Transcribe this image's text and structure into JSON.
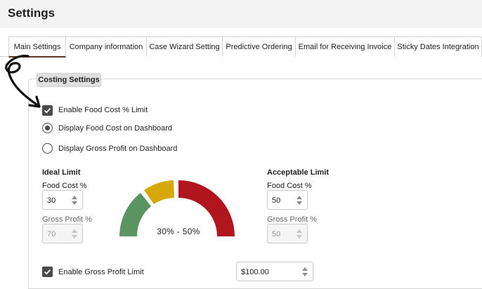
{
  "page": {
    "title": "Settings"
  },
  "tabs": [
    {
      "label": "Main Settings",
      "active": true
    },
    {
      "label": "Company information",
      "active": false
    },
    {
      "label": "Case Wizard Setting",
      "active": false
    },
    {
      "label": "Predictive Ordering",
      "active": false
    },
    {
      "label": "Email for Receiving Invoice",
      "active": false
    },
    {
      "label": "Sticky Dates Integration",
      "active": false
    }
  ],
  "costing": {
    "section_title": "Costing Settings",
    "enable_food_cost_limit": {
      "label": "Enable Food Cost % Limit",
      "checked": true
    },
    "display_food_cost": {
      "label": "Display Food Cost on Dashboard",
      "selected": true
    },
    "display_gross_profit": {
      "label": "Display Gross Profit on Dashboard",
      "selected": false
    },
    "ideal_limit": {
      "heading": "Ideal Limit",
      "food_cost_label": "Food Cost %",
      "food_cost_value": "30",
      "gross_profit_label": "Gross Profit %",
      "gross_profit_value": "70"
    },
    "acceptable_limit": {
      "heading": "Acceptable Limit",
      "food_cost_label": "Food Cost %",
      "food_cost_value": "50",
      "gross_profit_label": "Gross Profit %",
      "gross_profit_value": "50"
    },
    "gauge": {
      "range_label": "30% - 50%",
      "colors": {
        "green": "#5a9460",
        "yellow": "#d6a80a",
        "red": "#b0141c"
      }
    },
    "enable_gross_profit_limit": {
      "label": "Enable Gross Profit Limit",
      "checked": true
    },
    "gross_profit_amount": "$100.00"
  },
  "annotation": {
    "icon": "curved-arrow-icon",
    "color": "#111111"
  }
}
